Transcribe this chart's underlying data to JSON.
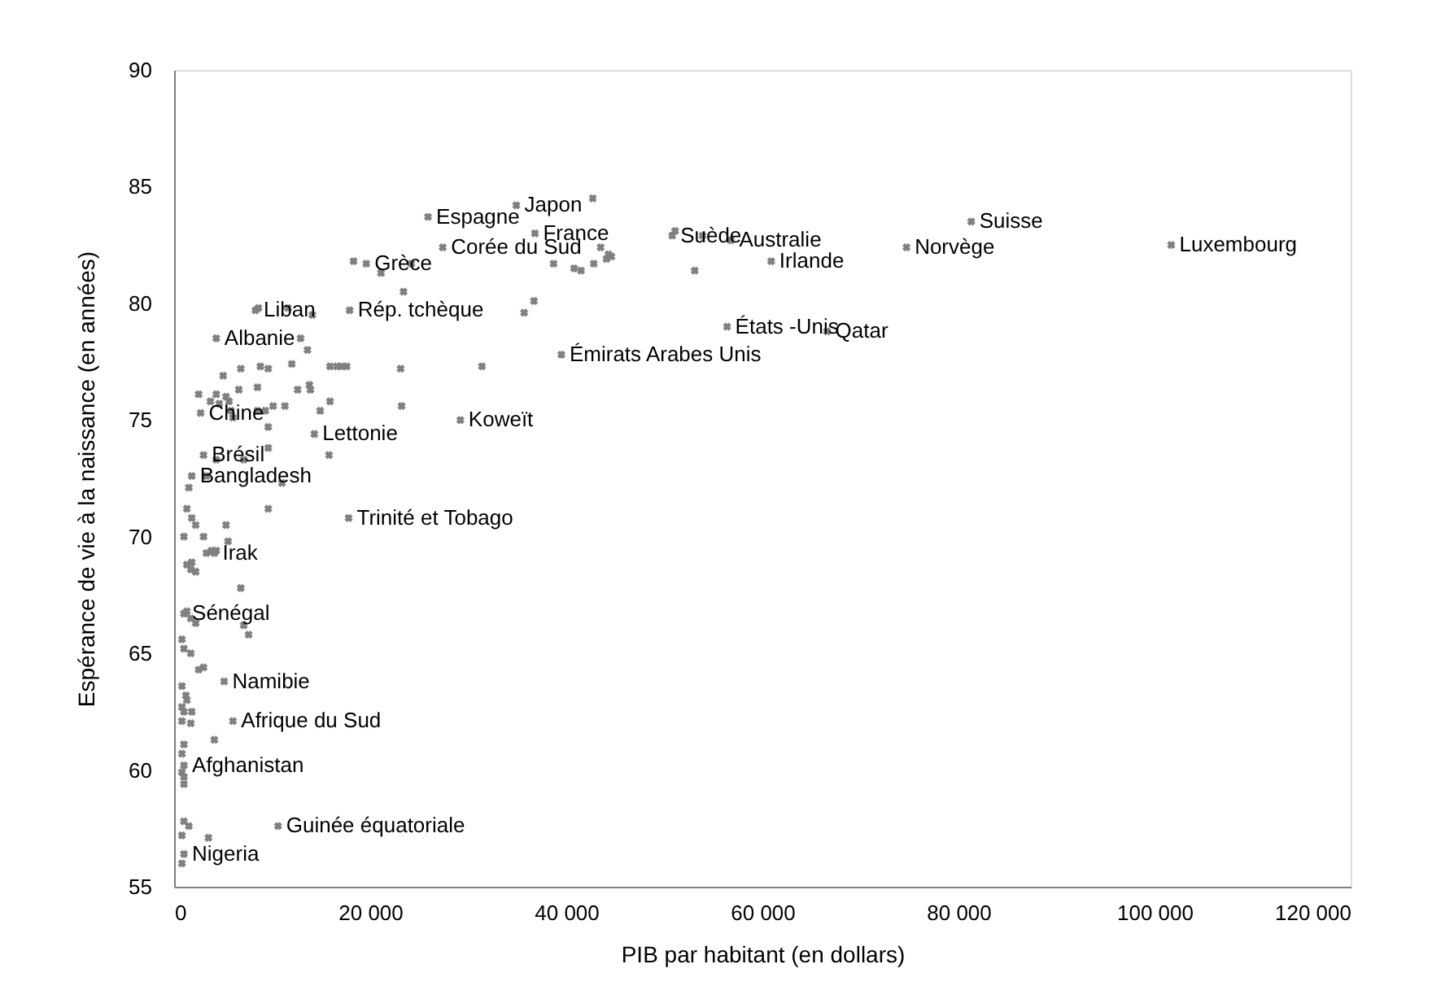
{
  "chart_data": {
    "type": "scatter",
    "xlabel": "PIB par habitant (en dollars)",
    "ylabel": "Espérance de vie à la naissance (en années)",
    "xlim": [
      0,
      120000
    ],
    "ylim": [
      55,
      90
    ],
    "xticks": [
      0,
      {
        "value": 20000,
        "label": "20 000"
      },
      {
        "value": 40000,
        "label": "40 000"
      },
      {
        "value": 60000,
        "label": "60 000"
      },
      {
        "value": 80000,
        "label": "80 000"
      },
      {
        "value": 100000,
        "label": "100 000"
      },
      {
        "value": 120000,
        "label": "120 000"
      }
    ],
    "yticks": [
      55,
      60,
      65,
      70,
      75,
      80,
      85,
      90
    ],
    "grid": false,
    "marker": "cross",
    "series": [
      {
        "color": "#808080",
        "x": [
          101700,
          81300,
          74700,
          66600,
          42700,
          34900,
          25900,
          36800,
          27400,
          43500,
          44300,
          44600,
          44100,
          42800,
          41500,
          40800,
          38700,
          53100,
          50800,
          51100,
          53900,
          56800,
          60900,
          35700,
          36700,
          31400,
          29200,
          56400,
          39500,
          18300,
          19600,
          21100,
          24200,
          23400,
          8300,
          8600,
          11600,
          14100,
          17900,
          4300,
          12900,
          13600,
          5000,
          6800,
          8800,
          9600,
          12000,
          15900,
          16600,
          17100,
          17600,
          23100,
          2500,
          4300,
          5300,
          6600,
          8500,
          12600,
          13800,
          13900,
          15900,
          23200,
          2700,
          3700,
          4600,
          5600,
          5800,
          6000,
          8500,
          9300,
          10100,
          11300,
          14900,
          9600,
          14300,
          9600,
          3000,
          4300,
          7100,
          15800,
          1800,
          3300,
          1500,
          11000,
          9600,
          1300,
          1800,
          2200,
          5300,
          1000,
          3000,
          5500,
          17800,
          3300,
          3800,
          4300,
          1800,
          1300,
          4100,
          1700,
          2200,
          6800,
          1000,
          1700,
          1300,
          2200,
          7100,
          7600,
          800,
          1000,
          1700,
          2500,
          3000,
          800,
          1200,
          1300,
          5100,
          6000,
          800,
          1000,
          1800,
          800,
          1700,
          4100,
          1000,
          800,
          1000,
          800,
          1000,
          1000,
          10600,
          1000,
          1500,
          800,
          3500,
          1000,
          800
        ],
        "values": [
          82.5,
          83.5,
          82.4,
          78.8,
          84.5,
          84.2,
          83.7,
          83.0,
          82.4,
          82.4,
          82.1,
          82.0,
          81.9,
          81.7,
          81.4,
          81.5,
          81.7,
          81.4,
          82.9,
          83.1,
          82.9,
          82.7,
          81.8,
          79.6,
          80.1,
          77.3,
          75.0,
          79.0,
          77.8,
          81.8,
          81.7,
          81.3,
          81.7,
          80.5,
          79.7,
          79.8,
          79.8,
          79.5,
          79.7,
          78.5,
          78.5,
          78.0,
          76.9,
          77.2,
          77.3,
          77.2,
          77.4,
          77.3,
          77.3,
          77.3,
          77.3,
          77.2,
          76.1,
          76.1,
          76.0,
          76.3,
          76.4,
          76.3,
          76.5,
          76.3,
          75.8,
          75.6,
          75.3,
          75.8,
          75.7,
          75.8,
          75.4,
          75.1,
          75.4,
          75.4,
          75.6,
          75.6,
          75.4,
          74.7,
          74.4,
          73.8,
          73.5,
          73.3,
          73.3,
          73.5,
          72.6,
          72.6,
          72.1,
          72.3,
          71.2,
          71.2,
          70.8,
          70.5,
          70.5,
          70.0,
          70.0,
          69.8,
          70.8,
          69.3,
          69.4,
          69.4,
          68.9,
          68.8,
          69.3,
          68.6,
          68.5,
          67.8,
          66.7,
          66.5,
          66.8,
          66.3,
          66.2,
          65.8,
          65.6,
          65.2,
          65.0,
          64.3,
          64.4,
          63.6,
          63.2,
          63.0,
          63.8,
          62.1,
          62.7,
          62.5,
          62.5,
          62.1,
          62.0,
          61.3,
          61.1,
          60.7,
          60.2,
          59.9,
          59.7,
          59.4,
          57.6,
          57.8,
          57.6,
          57.2,
          57.1,
          56.4,
          56.0
        ]
      }
    ],
    "annotations": [
      {
        "text": "Luxembourg",
        "x": 101700,
        "y": 82.5
      },
      {
        "text": "Suisse",
        "x": 81300,
        "y": 83.5
      },
      {
        "text": "Norvège",
        "x": 74700,
        "y": 82.4
      },
      {
        "text": "Qatar",
        "x": 66600,
        "y": 78.8
      },
      {
        "text": "États -Unis",
        "x": 56400,
        "y": 79.0
      },
      {
        "text": "Irlande",
        "x": 60900,
        "y": 81.8
      },
      {
        "text": "Australie",
        "x": 56800,
        "y": 82.7
      },
      {
        "text": "Suède",
        "x": 50800,
        "y": 82.9
      },
      {
        "text": "Japon",
        "x": 34900,
        "y": 84.2
      },
      {
        "text": "France",
        "x": 36800,
        "y": 83.0
      },
      {
        "text": "Espagne",
        "x": 25900,
        "y": 83.7
      },
      {
        "text": "Corée du Sud",
        "x": 27400,
        "y": 82.4
      },
      {
        "text": "Grèce",
        "x": 19600,
        "y": 81.7
      },
      {
        "text": "Émirats Arabes Unis",
        "x": 39500,
        "y": 77.8
      },
      {
        "text": "Koweït",
        "x": 29200,
        "y": 75.0
      },
      {
        "text": "Liban",
        "x": 8300,
        "y": 79.7
      },
      {
        "text": "Rép. tchèque",
        "x": 17900,
        "y": 79.7
      },
      {
        "text": "Albanie",
        "x": 4300,
        "y": 78.5
      },
      {
        "text": "Chine",
        "x": 2700,
        "y": 75.3
      },
      {
        "text": "Brésil",
        "x": 3000,
        "y": 73.5
      },
      {
        "text": "Lettonie",
        "x": 14300,
        "y": 74.4
      },
      {
        "text": "Bangladesh",
        "x": 1800,
        "y": 72.6
      },
      {
        "text": "Trinité et Tobago",
        "x": 17800,
        "y": 70.8
      },
      {
        "text": "Irak",
        "x": 4100,
        "y": 69.3
      },
      {
        "text": "Sénégal",
        "x": 1000,
        "y": 66.7
      },
      {
        "text": "Namibie",
        "x": 5100,
        "y": 63.8
      },
      {
        "text": "Afrique du Sud",
        "x": 6000,
        "y": 62.1
      },
      {
        "text": "Afghanistan",
        "x": 1000,
        "y": 60.2
      },
      {
        "text": "Guinée équatoriale",
        "x": 10600,
        "y": 57.6
      },
      {
        "text": "Nigeria",
        "x": 1000,
        "y": 56.4
      }
    ]
  }
}
